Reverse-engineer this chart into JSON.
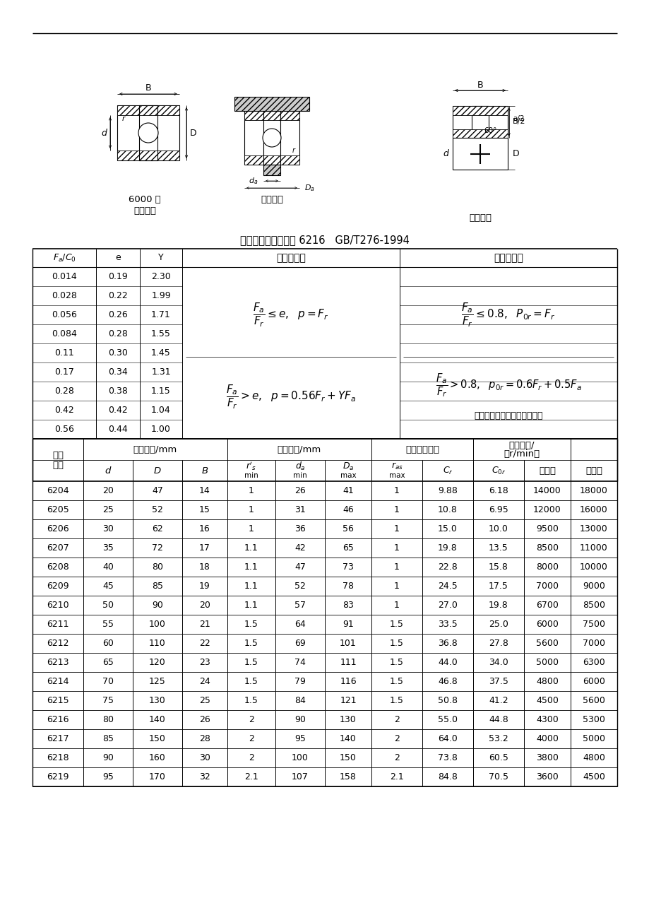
{
  "title_label": "标记示例：滚动轴承 6216   GB/T276-1994",
  "upper_table_data": [
    [
      "0.014",
      "0.19",
      "2.30"
    ],
    [
      "0.028",
      "0.22",
      "1.99"
    ],
    [
      "0.056",
      "0.26",
      "1.71"
    ],
    [
      "0.084",
      "0.28",
      "1.55"
    ],
    [
      "0.11",
      "0.30",
      "1.45"
    ],
    [
      "0.17",
      "0.34",
      "1.31"
    ],
    [
      "0.28",
      "0.38",
      "1.15"
    ],
    [
      "0.42",
      "0.42",
      "1.04"
    ],
    [
      "0.56",
      "0.44",
      "1.00"
    ]
  ],
  "lower_table_data": [
    [
      "6204",
      "20",
      "47",
      "14",
      "1",
      "26",
      "41",
      "1",
      "9.88",
      "6.18",
      "14000",
      "18000"
    ],
    [
      "6205",
      "25",
      "52",
      "15",
      "1",
      "31",
      "46",
      "1",
      "10.8",
      "6.95",
      "12000",
      "16000"
    ],
    [
      "6206",
      "30",
      "62",
      "16",
      "1",
      "36",
      "56",
      "1",
      "15.0",
      "10.0",
      "9500",
      "13000"
    ],
    [
      "6207",
      "35",
      "72",
      "17",
      "1.1",
      "42",
      "65",
      "1",
      "19.8",
      "13.5",
      "8500",
      "11000"
    ],
    [
      "6208",
      "40",
      "80",
      "18",
      "1.1",
      "47",
      "73",
      "1",
      "22.8",
      "15.8",
      "8000",
      "10000"
    ],
    [
      "6209",
      "45",
      "85",
      "19",
      "1.1",
      "52",
      "78",
      "1",
      "24.5",
      "17.5",
      "7000",
      "9000"
    ],
    [
      "6210",
      "50",
      "90",
      "20",
      "1.1",
      "57",
      "83",
      "1",
      "27.0",
      "19.8",
      "6700",
      "8500"
    ],
    [
      "6211",
      "55",
      "100",
      "21",
      "1.5",
      "64",
      "91",
      "1.5",
      "33.5",
      "25.0",
      "6000",
      "7500"
    ],
    [
      "6212",
      "60",
      "110",
      "22",
      "1.5",
      "69",
      "101",
      "1.5",
      "36.8",
      "27.8",
      "5600",
      "7000"
    ],
    [
      "6213",
      "65",
      "120",
      "23",
      "1.5",
      "74",
      "111",
      "1.5",
      "44.0",
      "34.0",
      "5000",
      "6300"
    ],
    [
      "6214",
      "70",
      "125",
      "24",
      "1.5",
      "79",
      "116",
      "1.5",
      "46.8",
      "37.5",
      "4800",
      "6000"
    ],
    [
      "6215",
      "75",
      "130",
      "25",
      "1.5",
      "84",
      "121",
      "1.5",
      "50.8",
      "41.2",
      "4500",
      "5600"
    ],
    [
      "6216",
      "80",
      "140",
      "26",
      "2",
      "90",
      "130",
      "2",
      "55.0",
      "44.8",
      "4300",
      "5300"
    ],
    [
      "6217",
      "85",
      "150",
      "28",
      "2",
      "95",
      "140",
      "2",
      "64.0",
      "53.2",
      "4000",
      "5000"
    ],
    [
      "6218",
      "90",
      "160",
      "30",
      "2",
      "100",
      "150",
      "2",
      "73.8",
      "60.5",
      "3800",
      "4800"
    ],
    [
      "6219",
      "95",
      "170",
      "32",
      "2.1",
      "107",
      "158",
      "2.1",
      "84.8",
      "70.5",
      "3600",
      "4500"
    ]
  ],
  "bg_color": "#ffffff",
  "text_color": "#000000"
}
